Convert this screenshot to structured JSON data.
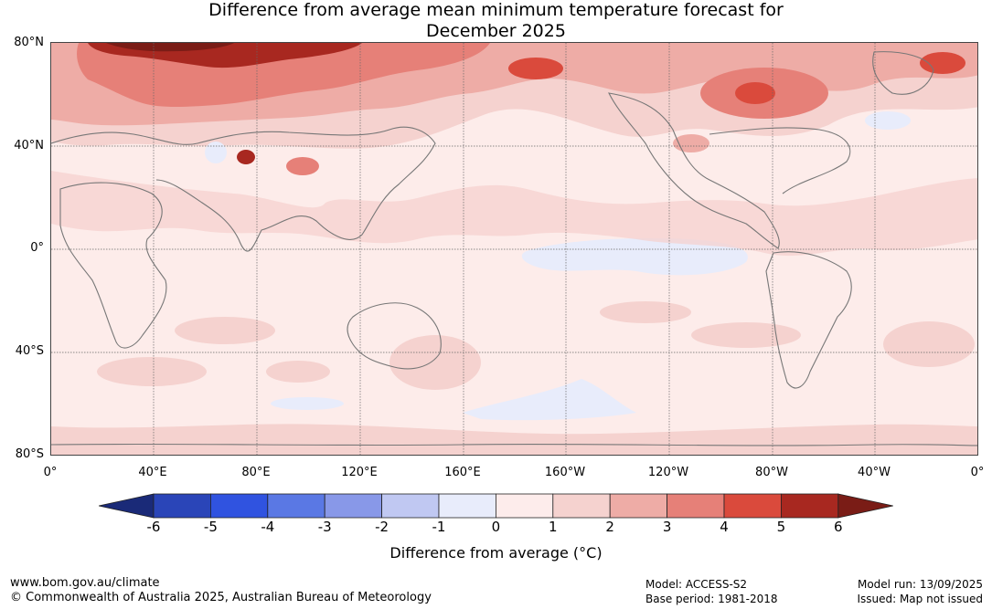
{
  "title": {
    "line1": "Difference from average mean minimum temperature forecast for",
    "line2": "December 2025"
  },
  "map": {
    "lat_labels": [
      "80°N",
      "40°N",
      "0°",
      "40°S",
      "80°S"
    ],
    "lon_labels": [
      "0°",
      "40°E",
      "80°E",
      "120°E",
      "160°E",
      "160°W",
      "120°W",
      "80°W",
      "40°W",
      "0°"
    ]
  },
  "colorbar": {
    "ticks": [
      "-6",
      "-5",
      "-4",
      "-3",
      "-2",
      "-1",
      "0",
      "1",
      "2",
      "3",
      "4",
      "5",
      "6"
    ],
    "colors": [
      "#1a2a78",
      "#2a45b8",
      "#3053e0",
      "#5a78e4",
      "#8898e8",
      "#c0c8f2",
      "#e8ecfb",
      "#fdeceb",
      "#f5d2cf",
      "#eeaca6",
      "#e68078",
      "#da4a3c",
      "#a82820",
      "#7a1c16"
    ],
    "label": "Difference from average (°C)"
  },
  "footer": {
    "website": "www.bom.gov.au/climate",
    "copyright": "© Commonwealth of Australia 2025, Australian Bureau of Meteorology",
    "model": "Model: ACCESS-S2",
    "base_period": "Base period: 1981-2018",
    "model_run": "Model run: 13/09/2025",
    "issued": "Issued: Map not issued"
  }
}
